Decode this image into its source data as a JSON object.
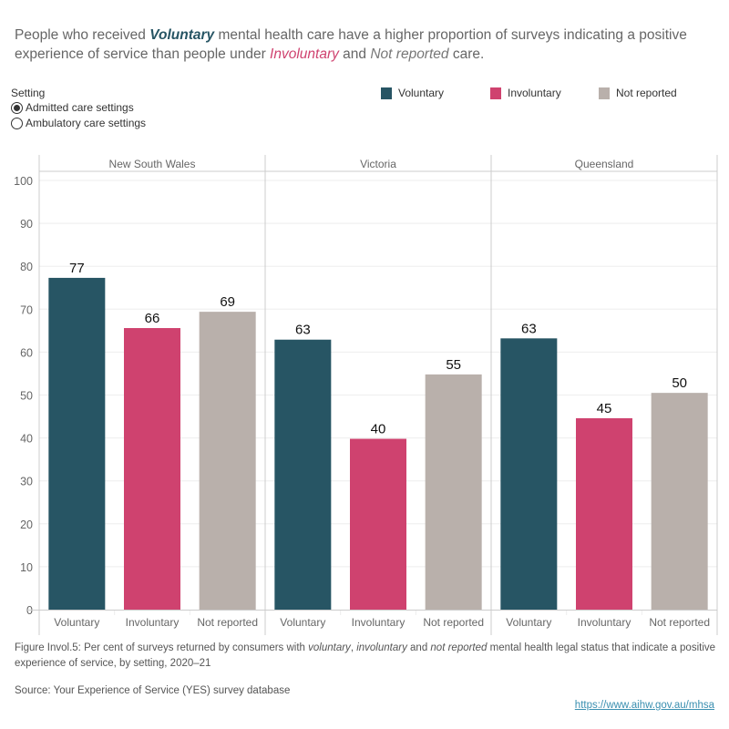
{
  "headline": {
    "part1": "People who received ",
    "voluntary": "Voluntary",
    "part2": " mental health care have a higher proportion of surveys indicating a positive experience of service than people under ",
    "involuntary": "Involuntary",
    "part3": "  and ",
    "not_reported": "Not reported",
    "part4": "  care."
  },
  "setting_filter": {
    "title": "Setting",
    "options": [
      {
        "label": "Admitted care settings",
        "selected": true
      },
      {
        "label": "Ambulatory care settings",
        "selected": false
      }
    ]
  },
  "legend": [
    {
      "label": "Voluntary",
      "color": "#275564"
    },
    {
      "label": "Involuntary",
      "color": "#cf426f"
    },
    {
      "label": "Not reported",
      "color": "#b9b0ab"
    }
  ],
  "chart_data": {
    "type": "bar",
    "title": "",
    "xlabel": "",
    "ylabel": "",
    "ylim": [
      0,
      100
    ],
    "yticks": [
      0,
      10,
      20,
      30,
      40,
      50,
      60,
      70,
      80,
      90,
      100
    ],
    "grid": true,
    "legend_position": "top-right",
    "panels": [
      "New South Wales",
      "Victoria",
      "Queensland"
    ],
    "categories": [
      "Voluntary",
      "Involuntary",
      "Not reported"
    ],
    "colors": [
      "#275564",
      "#cf426f",
      "#b9b0ab"
    ],
    "values": [
      [
        77,
        66,
        69
      ],
      [
        63,
        40,
        55
      ],
      [
        63,
        45,
        50
      ]
    ],
    "bar_heights_precise": [
      [
        77.3,
        65.6,
        69.4
      ],
      [
        62.9,
        39.8,
        54.8
      ],
      [
        63.2,
        44.6,
        50.5
      ]
    ]
  },
  "caption": {
    "p1": "Figure Invol.5: Per cent of surveys returned by consumers with ",
    "i1": "voluntary",
    "p2": ", ",
    "i2": "involuntary",
    "p3": " and ",
    "i3": "not reported",
    "p4": " mental health legal status that indicate a positive experience of service, by setting, 2020–21"
  },
  "source": "Source: Your Experience of Service (YES) survey database",
  "link": "https://www.aihw.gov.au/mhsa"
}
